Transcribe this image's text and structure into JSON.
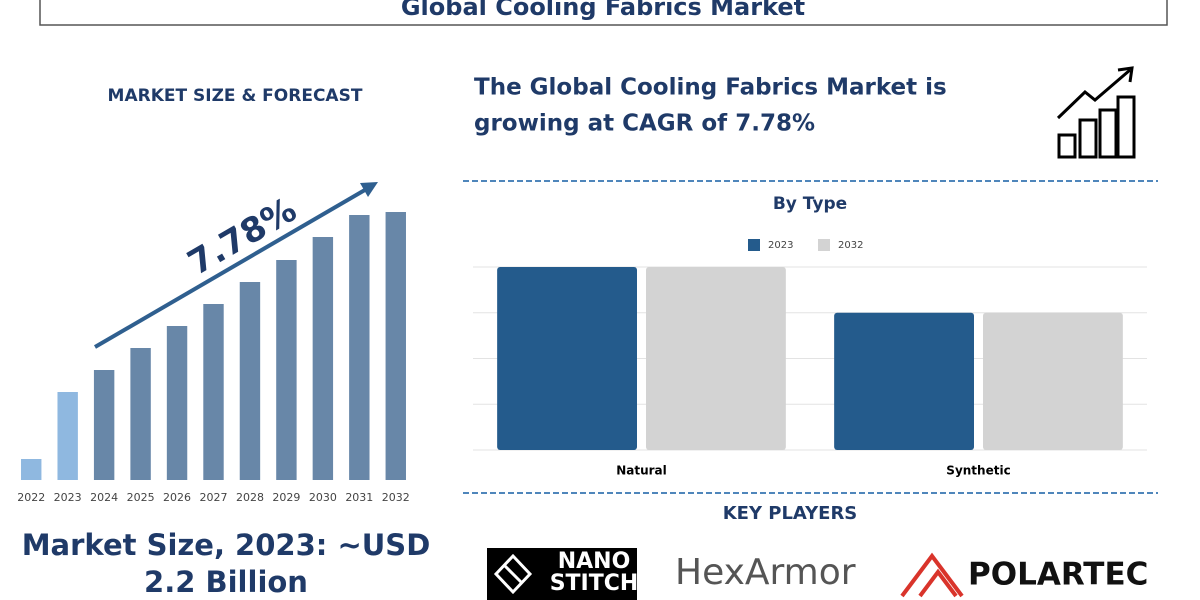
{
  "title": "Global Cooling Fabrics Market",
  "headline_lines": [
    "The Global Cooling Fabrics Market is",
    "growing at CAGR of 7.78%"
  ],
  "market_size_lines": [
    "Market Size, 2023: ~USD",
    "2.2 Billion"
  ],
  "key_players": {
    "title": "KEY PLAYERS",
    "logos": [
      [
        "NANO",
        "STITCH"
      ],
      "HexArmor",
      "POLARTEC"
    ]
  },
  "chart_data": [
    {
      "type": "bar",
      "title": "MARKET SIZE & FORECAST",
      "annotation": "7.78%",
      "categories": [
        "2022",
        "2023",
        "2024",
        "2025",
        "2026",
        "2027",
        "2028",
        "2029",
        "2030",
        "2031",
        "2032"
      ],
      "values": [
        21,
        88,
        110,
        132,
        154,
        176,
        198,
        220,
        243,
        265,
        268
      ],
      "colors": [
        "#8fb8e0",
        "#8fb8e0",
        "#6887a8",
        "#6887a8",
        "#6887a8",
        "#6887a8",
        "#6887a8",
        "#6887a8",
        "#6887a8",
        "#6887a8",
        "#6887a8"
      ],
      "ylim": [
        0,
        280
      ]
    },
    {
      "type": "bar",
      "title": "By Type",
      "categories": [
        "Natural",
        "Synthetic"
      ],
      "series": [
        {
          "name": "2023",
          "color": "#245b8c",
          "values": [
            4,
            3
          ]
        },
        {
          "name": "2032",
          "color": "#d3d3d3",
          "values": [
            4,
            3
          ]
        }
      ],
      "ylim": [
        0,
        4
      ],
      "yticks": [
        0,
        1,
        2,
        3,
        4
      ],
      "grid": true
    }
  ]
}
